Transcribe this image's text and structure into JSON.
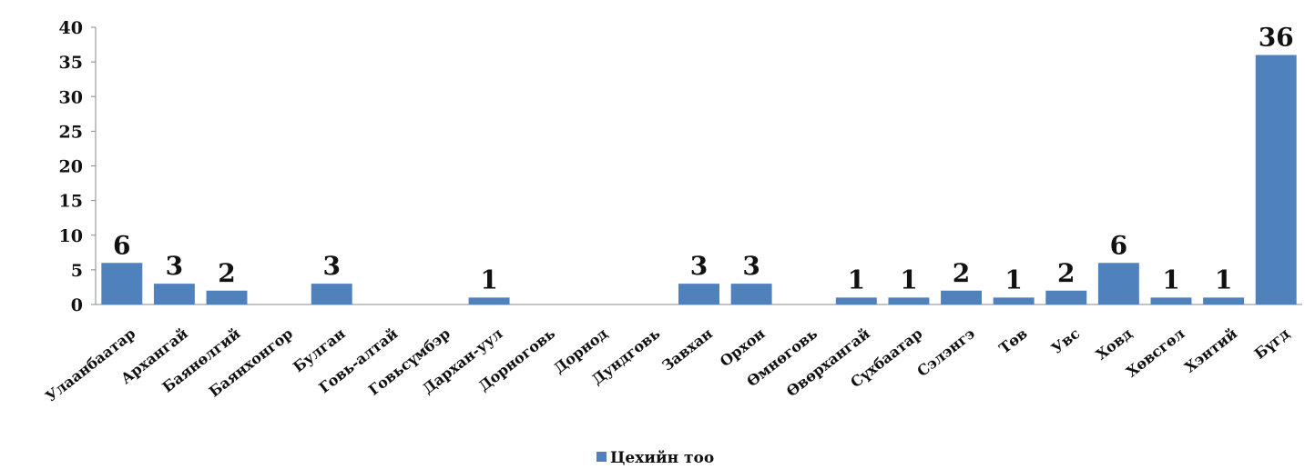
{
  "chart_data": {
    "type": "bar",
    "categories": [
      "Улаанбаатар",
      "Архангай",
      "Баянөлгий",
      "Баянхонгор",
      "Булган",
      "Говь-алтай",
      "Говьсүмбэр",
      "Дархан-уул",
      "Дорноговь",
      "Дорнод",
      "Дундговь",
      "Завхан",
      "Орхон",
      "Өмнөговь",
      "Өвөрхангай",
      "Сүхбаатар",
      "Сэлэнгэ",
      "Төв",
      "Увс",
      "Ховд",
      "Хөвсгөл",
      "Хэнтий",
      "Бүгд"
    ],
    "series": [
      {
        "name": "Цехийн тоо",
        "color": "#4f81bd",
        "values": [
          6,
          3,
          2,
          0,
          3,
          0,
          0,
          1,
          0,
          0,
          0,
          3,
          3,
          0,
          1,
          1,
          2,
          1,
          2,
          6,
          1,
          1,
          36
        ],
        "data_labels": [
          "6",
          "3",
          "2",
          "",
          "3",
          "",
          "",
          "1",
          "",
          "",
          "",
          "3",
          "3",
          "",
          "1",
          "1",
          "2",
          "1",
          "2",
          "6",
          "1",
          "1",
          "36"
        ]
      }
    ],
    "ylim": [
      0,
      40
    ],
    "yticks": [
      0,
      5,
      10,
      15,
      20,
      25,
      30,
      35,
      40
    ],
    "legend_position": "bottom",
    "grid": false
  }
}
